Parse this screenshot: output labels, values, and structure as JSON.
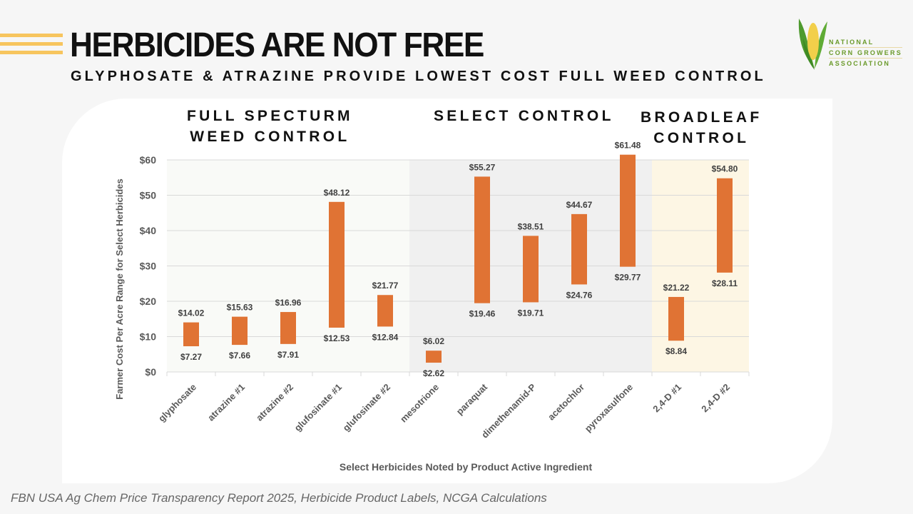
{
  "header": {
    "title": "HERBICIDES ARE NOT FREE",
    "subtitle": "GLYPHOSATE & ATRAZINE PROVIDE LOWEST COST FULL WEED CONTROL"
  },
  "logo": {
    "icon": "corn-cob-icon",
    "lines": [
      "NATIONAL",
      "CORN GROWERS",
      "ASSOCIATION"
    ],
    "colors": {
      "husk": "#4e9a2e",
      "kernel": "#f2cf4a",
      "text": "#6a9a2a"
    }
  },
  "sections": [
    {
      "id": "full",
      "label_line1": "FULL  SPECTURM",
      "label_line2": "WEED CONTROL",
      "start": 0,
      "end": 4,
      "color": "#f9faf7"
    },
    {
      "id": "select",
      "label_line1": "SELECT CONTROL",
      "label_line2": "",
      "start": 5,
      "end": 9,
      "color": "#f0f0f0"
    },
    {
      "id": "broadleaf",
      "label_line1": "BROADLEAF",
      "label_line2": "CONTROL",
      "start": 10,
      "end": 11,
      "color": "#fdf6e4"
    }
  ],
  "chart_data": {
    "type": "bar",
    "subtype": "floating-range",
    "title": "",
    "xlabel": "Select Herbicides Noted by Product Active Ingredient",
    "ylabel": "Farmer Cost Per Acre Range for Select Herbicides",
    "ylim": [
      0,
      60
    ],
    "yticks": [
      0,
      10,
      20,
      30,
      40,
      50,
      60
    ],
    "ytick_labels": [
      "$0",
      "$10",
      "$20",
      "$30",
      "$40",
      "$50",
      "$60"
    ],
    "grid": true,
    "categories": [
      "glyphosate",
      "atrazine #1",
      "atrazine #2",
      "glufosinate #1",
      "glufosinate #2",
      "mesotrione",
      "paraquat",
      "dimethenamid-P",
      "acetochlor",
      "pyroxasulfone",
      "2,4-D #1",
      "2,4-D #2"
    ],
    "series": [
      {
        "name": "low",
        "values": [
          7.27,
          7.66,
          7.91,
          12.53,
          12.84,
          2.62,
          19.46,
          19.71,
          24.76,
          29.77,
          8.84,
          28.11
        ]
      },
      {
        "name": "high",
        "values": [
          14.02,
          15.63,
          16.96,
          48.12,
          21.77,
          6.02,
          55.27,
          38.51,
          44.67,
          61.48,
          21.22,
          54.8
        ]
      }
    ],
    "low_labels": [
      "$7.27",
      "$7.66",
      "$7.91",
      "$12.53",
      "$12.84",
      "$2.62",
      "$19.46",
      "$19.71",
      "$24.76",
      "$29.77",
      "$8.84",
      "$28.11"
    ],
    "high_labels": [
      "$14.02",
      "$15.63",
      "$16.96",
      "$48.12",
      "$21.77",
      "$6.02",
      "$55.27",
      "$38.51",
      "$44.67",
      "$61.48",
      "$21.22",
      "$54.80"
    ],
    "bar_color": "#e07334",
    "legend": "none"
  },
  "footer": {
    "source": "FBN USA Ag Chem Price Transparency Report 2025, Herbicide Product Labels, NCGA Calculations"
  }
}
